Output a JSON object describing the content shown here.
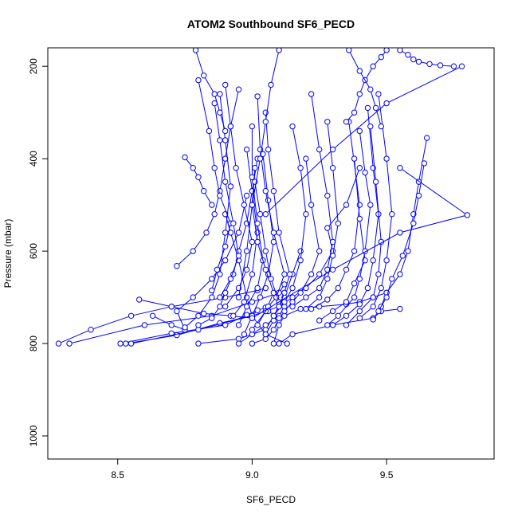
{
  "chart_data": {
    "type": "line",
    "title": "ATOM2 Southbound SF6_PECD",
    "xlabel": "SF6_PECD",
    "ylabel": "Pressure (mbar)",
    "xlim": [
      8.24,
      9.9
    ],
    "ylim": [
      1050,
      160
    ],
    "y_reversed": true,
    "xticks": [
      "8.5",
      "9.0",
      "9.5"
    ],
    "xtick_values": [
      8.5,
      9.0,
      9.5
    ],
    "yticks": [
      "200",
      "400",
      "600",
      "800",
      "1000"
    ],
    "ytick_values": [
      200,
      400,
      600,
      800,
      1000
    ],
    "line_color": "#0000ff",
    "marker": "open-circle",
    "grid": false,
    "legend": "none",
    "series": [
      {
        "x": [
          8.28,
          8.4,
          8.55,
          8.7,
          8.9,
          9.02,
          9.05
        ],
        "y": [
          800,
          770,
          740,
          720,
          700,
          685,
          680
        ]
      },
      {
        "x": [
          8.32,
          8.6,
          8.85,
          9.0,
          9.1,
          9.12
        ],
        "y": [
          800,
          760,
          740,
          710,
          690,
          672
        ]
      },
      {
        "x": [
          8.51,
          8.7,
          8.9,
          8.98,
          9.05
        ],
        "y": [
          800,
          778,
          760,
          738,
          722
        ]
      },
      {
        "x": [
          8.53,
          8.72,
          8.88,
          9.0,
          9.02
        ],
        "y": [
          800,
          782,
          756,
          740,
          728
        ]
      },
      {
        "x": [
          8.55,
          8.8,
          9.0,
          9.1,
          9.15,
          9.2,
          9.25,
          9.3,
          9.28,
          9.35,
          9.4
        ],
        "y": [
          800,
          770,
          740,
          720,
          700,
          680,
          650,
          600,
          550,
          500,
          420
        ]
      },
      {
        "x": [
          8.8,
          8.95,
          9.05,
          9.08,
          9.12,
          9.15,
          9.18
        ],
        "y": [
          800,
          790,
          770,
          740,
          700,
          650,
          600
        ]
      },
      {
        "x": [
          8.95,
          9.0,
          9.05,
          9.1,
          9.12
        ],
        "y": [
          800,
          780,
          760,
          740,
          720
        ]
      },
      {
        "x": [
          9.0,
          9.05,
          9.08,
          9.1,
          9.06
        ],
        "y": [
          800,
          790,
          770,
          745,
          730
        ]
      },
      {
        "x": [
          9.08,
          9.1,
          9.12,
          9.18,
          9.25,
          9.35,
          9.4,
          9.45,
          9.5
        ],
        "y": [
          800,
          760,
          740,
          725,
          720,
          715,
          710,
          700,
          690
        ]
      },
      {
        "x": [
          9.1,
          9.15,
          9.3,
          9.45,
          9.48,
          9.55
        ],
        "y": [
          800,
          780,
          760,
          745,
          730,
          725
        ]
      },
      {
        "x": [
          9.13,
          9.05,
          9.0,
          8.98,
          8.95,
          8.92,
          8.9
        ],
        "y": [
          800,
          780,
          740,
          700,
          620,
          560,
          520
        ]
      },
      {
        "x": [
          8.58,
          8.7,
          8.82,
          8.92,
          9.0
        ],
        "y": [
          705,
          720,
          735,
          740,
          745
        ]
      },
      {
        "x": [
          8.63,
          8.7,
          8.75,
          8.72,
          8.78,
          8.85,
          8.9,
          8.95,
          8.98
        ],
        "y": [
          740,
          760,
          770,
          730,
          700,
          660,
          620,
          560,
          480
        ]
      },
      {
        "x": [
          8.72,
          8.78,
          8.83,
          8.86,
          8.88,
          8.9,
          8.92,
          8.95
        ],
        "y": [
          632,
          600,
          560,
          520,
          470,
          400,
          330,
          250
        ]
      },
      {
        "x": [
          8.75,
          8.8,
          8.85,
          8.88,
          8.9,
          8.92,
          8.9,
          8.88
        ],
        "y": [
          765,
          740,
          700,
          650,
          560,
          460,
          360,
          260
        ]
      },
      {
        "x": [
          8.8,
          8.85,
          8.88,
          8.9,
          8.93,
          8.95,
          8.98,
          9.0,
          9.02
        ],
        "y": [
          760,
          745,
          720,
          690,
          650,
          600,
          540,
          470,
          400
        ]
      },
      {
        "x": [
          8.85,
          8.87,
          8.9,
          8.92,
          8.88,
          8.86,
          8.84,
          8.8
        ],
        "y": [
          685,
          640,
          590,
          540,
          480,
          420,
          340,
          230
        ]
      },
      {
        "x": [
          8.88,
          8.92,
          8.95,
          8.93,
          8.9,
          8.88,
          8.86
        ],
        "y": [
          700,
          660,
          610,
          540,
          450,
          360,
          280
        ]
      },
      {
        "x": [
          8.9,
          8.95,
          8.98,
          9.0,
          8.97,
          8.94,
          8.92,
          8.9
        ],
        "y": [
          720,
          680,
          640,
          580,
          500,
          420,
          330,
          240
        ]
      },
      {
        "x": [
          8.93,
          8.97,
          9.0,
          9.02,
          9.0,
          8.98
        ],
        "y": [
          740,
          710,
          650,
          560,
          470,
          380
        ]
      },
      {
        "x": [
          8.95,
          8.98,
          9.02,
          9.04,
          9.02,
          9.0,
          9.0
        ],
        "y": [
          760,
          720,
          680,
          620,
          540,
          440,
          330
        ]
      },
      {
        "x": [
          8.97,
          9.0,
          9.03,
          9.06,
          9.08,
          9.06,
          9.04
        ],
        "y": [
          780,
          740,
          700,
          650,
          580,
          490,
          390
        ]
      },
      {
        "x": [
          9.0,
          9.05,
          9.08,
          9.05,
          9.02,
          9.0,
          9.01
        ],
        "y": [
          770,
          730,
          690,
          640,
          580,
          500,
          420
        ]
      },
      {
        "x": [
          9.02,
          9.06,
          9.09,
          9.12,
          9.08,
          9.05,
          9.03,
          9.02
        ],
        "y": [
          760,
          720,
          700,
          650,
          560,
          470,
          380,
          265
        ]
      },
      {
        "x": [
          9.05,
          9.08,
          9.1,
          9.07,
          9.05,
          9.03,
          9.01
        ],
        "y": [
          780,
          750,
          710,
          660,
          600,
          520,
          450
        ]
      },
      {
        "x": [
          9.08,
          9.12,
          9.15,
          9.18,
          9.2,
          9.18,
          9.15
        ],
        "y": [
          740,
          710,
          680,
          620,
          520,
          420,
          330
        ]
      },
      {
        "x": [
          9.1,
          9.12,
          9.14,
          9.1,
          9.08,
          9.06,
          9.05
        ],
        "y": [
          720,
          690,
          650,
          560,
          470,
          380,
          300
        ]
      },
      {
        "x": [
          9.12,
          9.15,
          9.18,
          9.22,
          9.25,
          9.22,
          9.2
        ],
        "y": [
          730,
          710,
          690,
          650,
          600,
          500,
          400
        ]
      },
      {
        "x": [
          9.15,
          9.2,
          9.25,
          9.28,
          9.3,
          9.28,
          9.25,
          9.22
        ],
        "y": [
          720,
          700,
          680,
          640,
          580,
          480,
          380,
          260
        ]
      },
      {
        "x": [
          9.2,
          9.25,
          9.28,
          9.3,
          9.32,
          9.3,
          9.28
        ],
        "y": [
          725,
          700,
          660,
          610,
          540,
          420,
          320
        ]
      },
      {
        "x": [
          9.22,
          9.28,
          9.32,
          9.35,
          9.38,
          9.4,
          9.36
        ],
        "y": [
          725,
          705,
          680,
          640,
          600,
          500,
          320
        ]
      },
      {
        "x": [
          9.25,
          9.3,
          9.35,
          9.38,
          9.42,
          9.4,
          9.38
        ],
        "y": [
          750,
          730,
          710,
          670,
          620,
          530,
          400
        ]
      },
      {
        "x": [
          9.28,
          9.32,
          9.38,
          9.4,
          9.42,
          9.44,
          9.42,
          9.4
        ],
        "y": [
          760,
          740,
          700,
          660,
          600,
          500,
          430,
          340
        ]
      },
      {
        "x": [
          9.3,
          9.35,
          9.4,
          9.43,
          9.45,
          9.47,
          9.45,
          9.43
        ],
        "y": [
          760,
          740,
          715,
          680,
          620,
          520,
          420,
          290
        ]
      },
      {
        "x": [
          9.35,
          9.4,
          9.45,
          9.47,
          9.48,
          9.46,
          9.44
        ],
        "y": [
          760,
          730,
          700,
          650,
          580,
          450,
          330
        ]
      },
      {
        "x": [
          9.4,
          9.45,
          9.48,
          9.5,
          9.52,
          9.5,
          9.47
        ],
        "y": [
          745,
          720,
          680,
          620,
          520,
          400,
          260
        ]
      },
      {
        "x": [
          9.45,
          9.48,
          9.5,
          9.55,
          9.58,
          9.6,
          9.62,
          9.65
        ],
        "y": [
          748,
          720,
          690,
          650,
          600,
          520,
          450,
          355
        ]
      },
      {
        "x": [
          9.47,
          9.5,
          9.52,
          9.56,
          9.6,
          9.62,
          9.64
        ],
        "y": [
          730,
          700,
          660,
          610,
          540,
          480,
          410
        ]
      },
      {
        "x": [
          9.0,
          9.3,
          9.55,
          9.8,
          9.55
        ],
        "y": [
          745,
          640,
          560,
          522,
          420
        ]
      },
      {
        "x": [
          9.05,
          9.3,
          9.5,
          9.78
        ],
        "y": [
          520,
          380,
          280,
          200
        ]
      },
      {
        "x": [
          8.75,
          8.78,
          8.8,
          8.82,
          8.85
        ],
        "y": [
          397,
          420,
          440,
          470,
          500
        ]
      },
      {
        "x": [
          8.79,
          8.82,
          8.86,
          8.88,
          8.9
        ],
        "y": [
          165,
          220,
          260,
          300,
          340
        ]
      },
      {
        "x": [
          8.95,
          8.98,
          9.0,
          9.03,
          9.05,
          9.07,
          9.1
        ],
        "y": [
          700,
          600,
          500,
          400,
          320,
          240,
          165
        ]
      },
      {
        "x": [
          9.35,
          9.38,
          9.4,
          9.42,
          9.45,
          9.48,
          9.5
        ],
        "y": [
          320,
          300,
          260,
          230,
          200,
          180,
          165
        ]
      },
      {
        "x": [
          9.36,
          9.4,
          9.44,
          9.46,
          9.48
        ],
        "y": [
          165,
          210,
          250,
          290,
          330
        ]
      },
      {
        "x": [
          9.55,
          9.58,
          9.6,
          9.62,
          9.66,
          9.7,
          9.75
        ],
        "y": [
          165,
          175,
          185,
          190,
          195,
          198,
          200
        ]
      }
    ]
  }
}
